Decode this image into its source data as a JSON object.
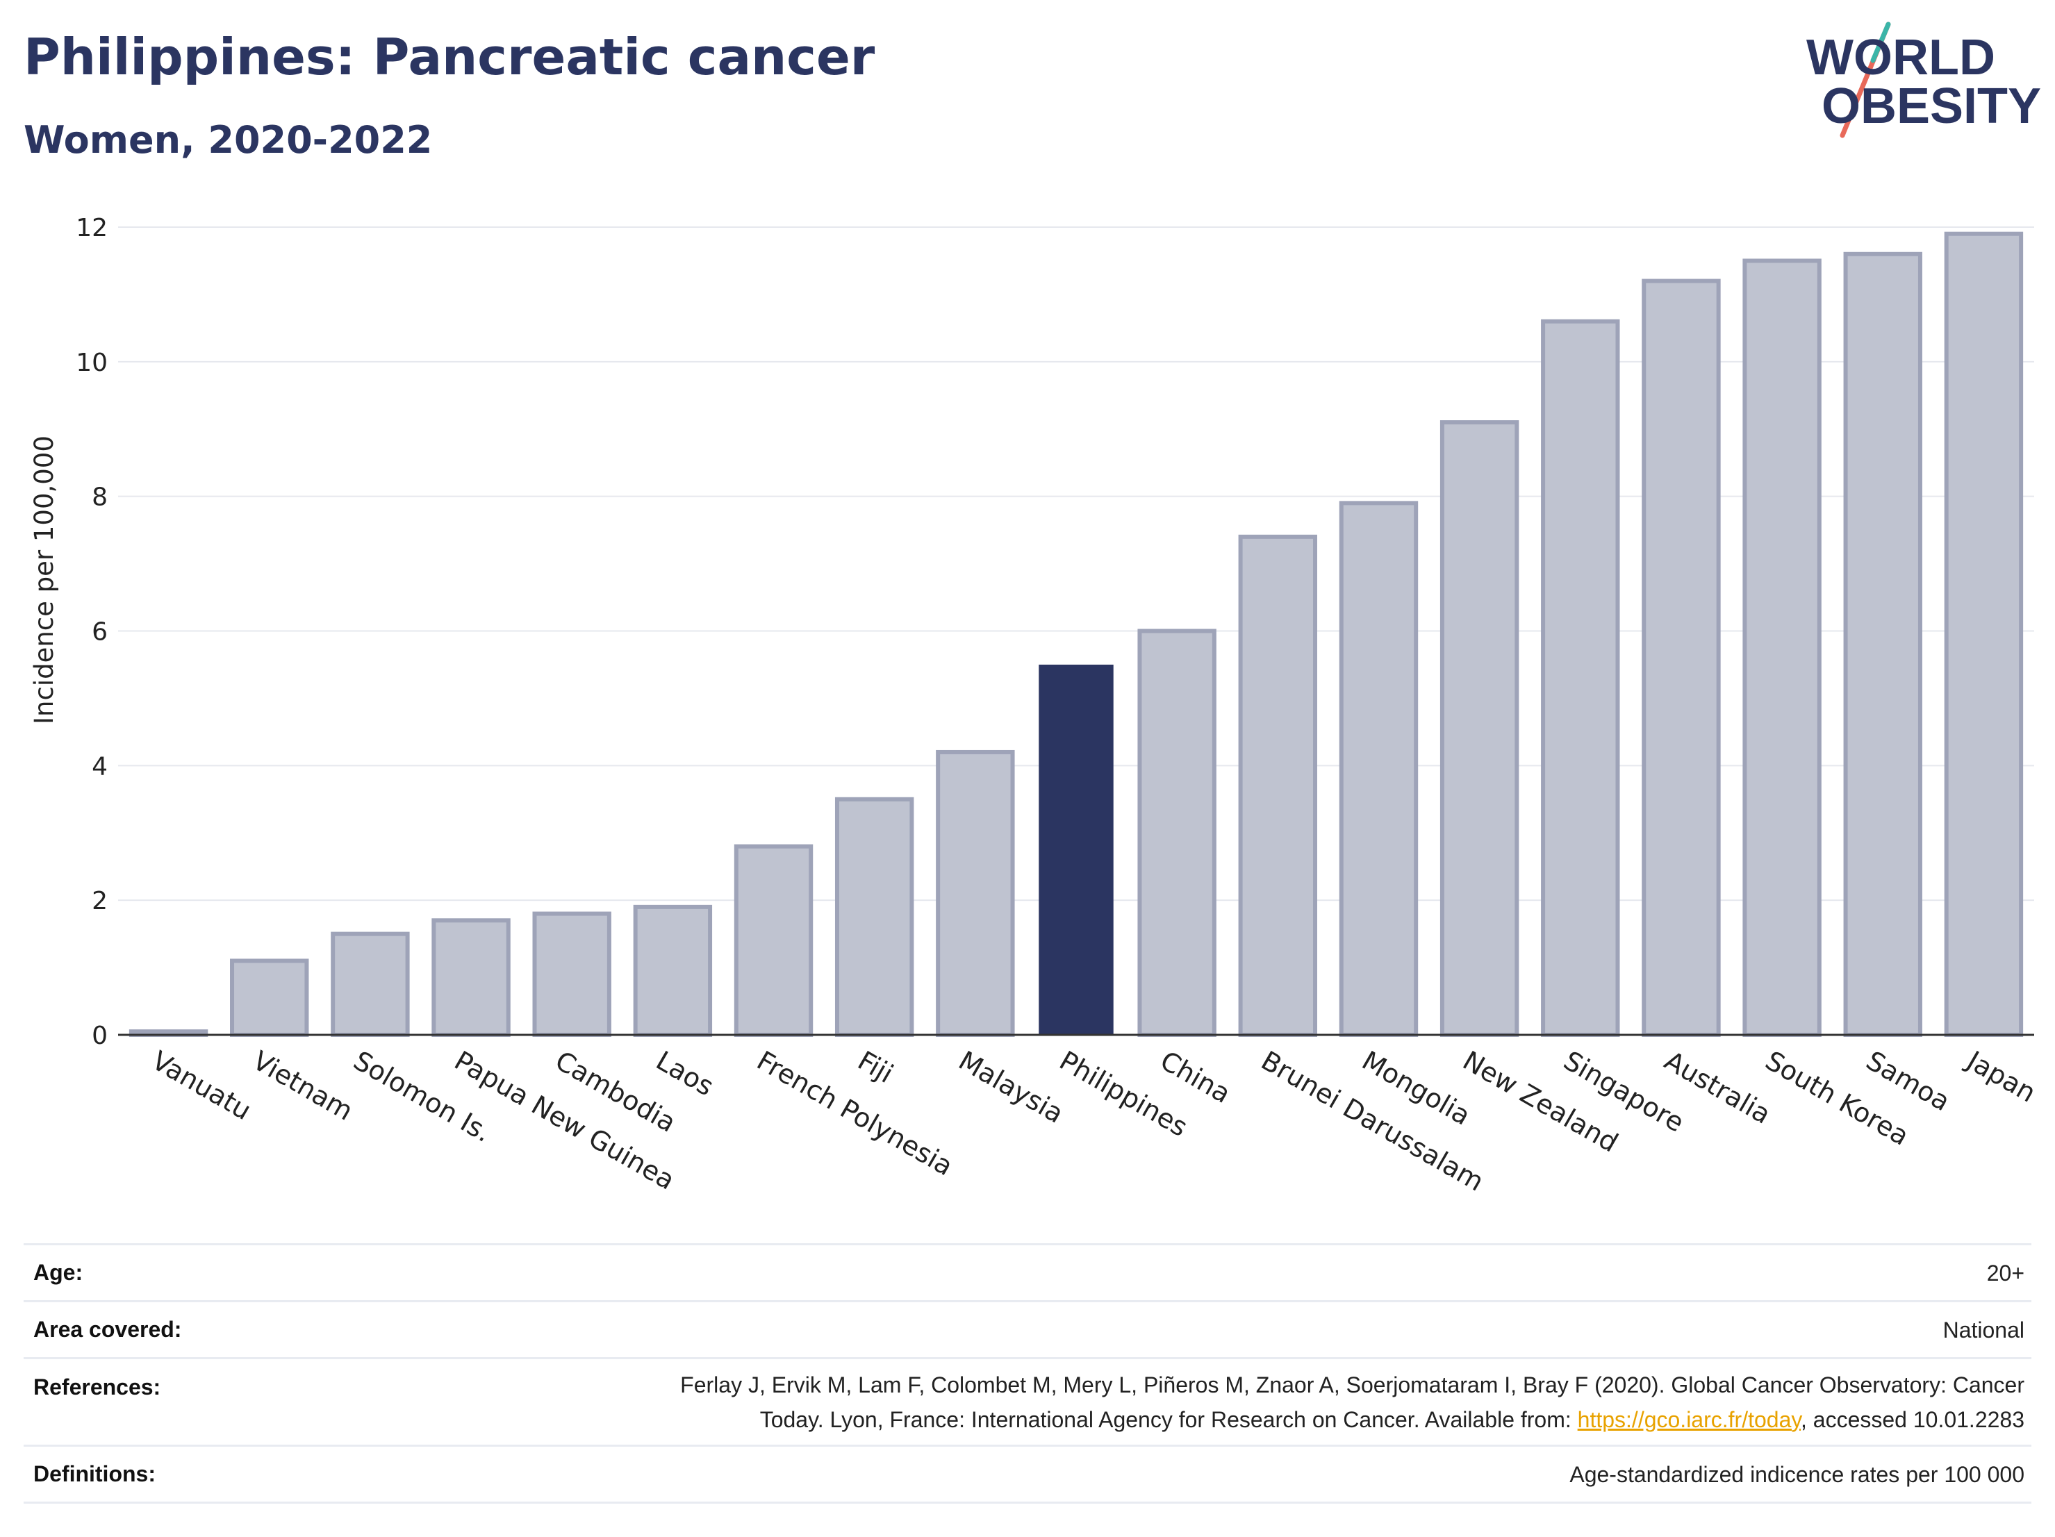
{
  "header": {
    "title": "Philippines: Pancreatic cancer",
    "subtitle": "Women, 2020-2022"
  },
  "logo": {
    "line1": "WORLD",
    "line2": "OBESITY",
    "colors": {
      "text": "#2b3561",
      "teal": "#3bb5a8",
      "coral": "#e8695a"
    }
  },
  "colors": {
    "highlight": "#2b3561",
    "bar_fill": "#bfc3d0",
    "bar_stroke": "#9ea3b8",
    "grid": "#e6e8ee",
    "axis": "#333333"
  },
  "chart_data": {
    "type": "bar",
    "categories": [
      "Vanuatu",
      "Vietnam",
      "Solomon Is.",
      "Papua New Guinea",
      "Cambodia",
      "Laos",
      "French Polynesia",
      "Fiji",
      "Malaysia",
      "Philippines",
      "China",
      "Brunei Darussalam",
      "Mongolia",
      "New Zealand",
      "Singapore",
      "Australia",
      "South Korea",
      "Samoa",
      "Japan"
    ],
    "values": [
      0.05,
      1.1,
      1.5,
      1.7,
      1.8,
      1.9,
      2.8,
      3.5,
      4.2,
      5.5,
      6.0,
      7.4,
      7.9,
      9.1,
      10.6,
      11.2,
      11.5,
      11.6,
      11.9
    ],
    "highlight": "Philippines",
    "ylabel": "Incidence per 100,000",
    "ylim": [
      0,
      12
    ],
    "yticks": [
      0,
      2,
      4,
      6,
      8,
      10,
      12
    ],
    "grid": true
  },
  "info": {
    "age_label": "Age:",
    "age_value": "20+",
    "area_label": "Area covered:",
    "area_value": "National",
    "references_label": "References:",
    "references_text_1": "Ferlay J, Ervik M, Lam F, Colombet M, Mery L, Piñeros M, Znaor A, Soerjomataram I, Bray F (2020). Global Cancer Observatory: Cancer Today. Lyon, France: International Agency for Research on Cancer. Available from: ",
    "references_link": "https://gco.iarc.fr/today",
    "references_text_2": ", accessed 10.01.2283",
    "definitions_label": "Definitions:",
    "definitions_value": "Age-standardized indicence rates per 100 000"
  }
}
